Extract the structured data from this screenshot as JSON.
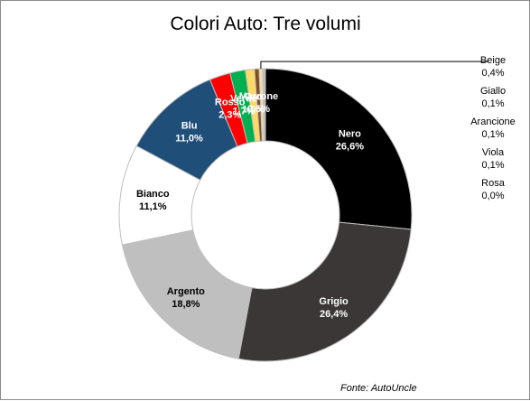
{
  "chart_data": {
    "type": "pie",
    "title": "Colori Auto: Tre volumi",
    "source": "Fonte: AutoUncle",
    "categories": [
      "Nero",
      "Grigio",
      "Argento",
      "Bianco",
      "Blu",
      "Rosso",
      "Verde",
      "Oro",
      "Marrone",
      "Beige",
      "Giallo",
      "Arancione",
      "Viola",
      "Rosa"
    ],
    "values": [
      26.6,
      26.4,
      18.8,
      11.1,
      11.0,
      2.3,
      1.7,
      1.0,
      0.5,
      0.4,
      0.1,
      0.1,
      0.1,
      0.0
    ],
    "value_labels": [
      "26,6%",
      "26,4%",
      "18,8%",
      "11,1%",
      "11,0%",
      "2,3%",
      "1,7%",
      "1,0%",
      "0,5%",
      "0,4%",
      "0,1%",
      "0,1%",
      "0,1%",
      "0,0%"
    ],
    "colors": [
      "#000000",
      "#3a3736",
      "#bfbfbf",
      "#ffffff",
      "#1f4e79",
      "#ff0000",
      "#00b050",
      "#ffd966",
      "#7f4f1f",
      "#f2dcb0",
      "#ffff00",
      "#ff8c00",
      "#7030a0",
      "#ff66cc"
    ],
    "label_colors": [
      "#ffffff",
      "#ffffff",
      "#000000",
      "#000000",
      "#ffffff",
      "#ffffff",
      "#ffffff",
      "#ffffff",
      "#ffffff",
      "#000000",
      "#000000",
      "#000000",
      "#000000",
      "#000000"
    ],
    "legend_position": "right",
    "legend_items": [
      "Beige",
      "Giallo",
      "Arancione",
      "Viola",
      "Rosa"
    ]
  }
}
